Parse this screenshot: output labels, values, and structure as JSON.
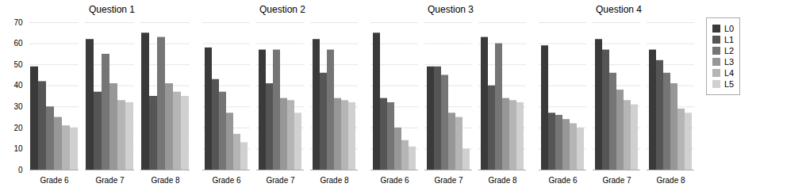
{
  "chart_data": [
    {
      "type": "bar",
      "title": "Question 1",
      "categories": [
        "Grade 6",
        "Grade 7",
        "Grade 8"
      ],
      "series": [
        {
          "name": "L0",
          "color": "#3a3a3a",
          "values": [
            49,
            62,
            65
          ]
        },
        {
          "name": "L1",
          "color": "#555555",
          "values": [
            42,
            37,
            35
          ]
        },
        {
          "name": "L2",
          "color": "#757575",
          "values": [
            30,
            55,
            63
          ]
        },
        {
          "name": "L3",
          "color": "#979797",
          "values": [
            25,
            41,
            41
          ]
        },
        {
          "name": "L4",
          "color": "#b5b5b5",
          "values": [
            21,
            33,
            37
          ]
        },
        {
          "name": "L5",
          "color": "#d0d0d0",
          "values": [
            20,
            32,
            35
          ]
        }
      ],
      "ylim": [
        0,
        70
      ],
      "yticks": [
        0,
        10,
        20,
        30,
        40,
        50,
        60,
        70
      ],
      "grid": true
    },
    {
      "type": "bar",
      "title": "Question 2",
      "categories": [
        "Grade 6",
        "Grade 7",
        "Grade 8"
      ],
      "series": [
        {
          "name": "L0",
          "color": "#3a3a3a",
          "values": [
            58,
            57,
            62
          ]
        },
        {
          "name": "L1",
          "color": "#555555",
          "values": [
            43,
            41,
            46
          ]
        },
        {
          "name": "L2",
          "color": "#757575",
          "values": [
            37,
            57,
            57
          ]
        },
        {
          "name": "L3",
          "color": "#979797",
          "values": [
            27,
            34,
            34
          ]
        },
        {
          "name": "L4",
          "color": "#b5b5b5",
          "values": [
            17,
            33,
            33
          ]
        },
        {
          "name": "L5",
          "color": "#d0d0d0",
          "values": [
            13,
            27,
            32
          ]
        }
      ],
      "ylim": [
        0,
        70
      ],
      "yticks": [
        0,
        10,
        20,
        30,
        40,
        50,
        60,
        70
      ],
      "grid": true,
      "tick_labels": "x"
    },
    {
      "type": "bar",
      "title": "Question 3",
      "categories": [
        "Grade 6",
        "Grade 7",
        "Grade 8"
      ],
      "series": [
        {
          "name": "L0",
          "color": "#3a3a3a",
          "values": [
            65,
            49,
            63
          ]
        },
        {
          "name": "L1",
          "color": "#555555",
          "values": [
            34,
            49,
            40
          ]
        },
        {
          "name": "L2",
          "color": "#757575",
          "values": [
            32,
            45,
            60
          ]
        },
        {
          "name": "L3",
          "color": "#979797",
          "values": [
            20,
            27,
            34
          ]
        },
        {
          "name": "L4",
          "color": "#b5b5b5",
          "values": [
            14,
            25,
            33
          ]
        },
        {
          "name": "L5",
          "color": "#d0d0d0",
          "values": [
            11,
            10,
            32
          ]
        }
      ],
      "ylim": [
        0,
        70
      ],
      "yticks": [
        0,
        10,
        20,
        30,
        40,
        50,
        60,
        70
      ],
      "grid": true,
      "tick_labels": "x"
    },
    {
      "type": "bar",
      "title": "Question 4",
      "categories": [
        "Grade 6",
        "Grade 7",
        "Grade 8"
      ],
      "series": [
        {
          "name": "L0",
          "color": "#3a3a3a",
          "values": [
            59,
            62,
            57
          ]
        },
        {
          "name": "L1",
          "color": "#555555",
          "values": [
            27,
            57,
            52
          ]
        },
        {
          "name": "L2",
          "color": "#757575",
          "values": [
            26,
            46,
            46
          ]
        },
        {
          "name": "L3",
          "color": "#979797",
          "values": [
            24,
            38,
            41
          ]
        },
        {
          "name": "L4",
          "color": "#b5b5b5",
          "values": [
            22,
            33,
            29
          ]
        },
        {
          "name": "L5",
          "color": "#d0d0d0",
          "values": [
            20,
            31,
            27
          ]
        }
      ],
      "ylim": [
        0,
        70
      ],
      "yticks": [
        0,
        10,
        20,
        30,
        40,
        50,
        60,
        70
      ],
      "grid": true,
      "tick_labels": "x",
      "legend": "right"
    }
  ]
}
